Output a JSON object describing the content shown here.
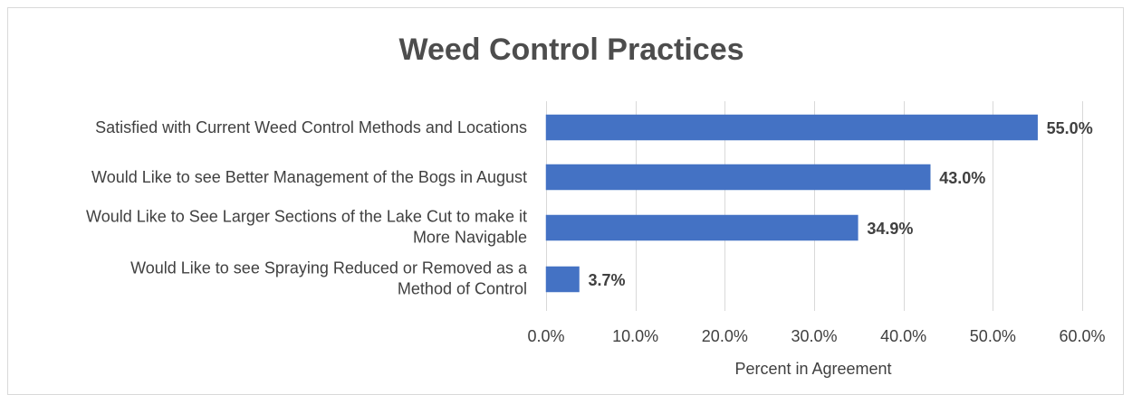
{
  "chart_data": {
    "type": "bar",
    "orientation": "horizontal",
    "title": "Weed Control Practices",
    "xlabel": "Percent in Agreement",
    "ylabel": "",
    "xlim": [
      0,
      60
    ],
    "x_ticks": [
      "0.0%",
      "10.0%",
      "20.0%",
      "30.0%",
      "40.0%",
      "50.0%",
      "60.0%"
    ],
    "grid": "vertical",
    "legend": "none",
    "bar_color": "#4472c4",
    "categories": [
      [
        "Satisfied with Current Weed Control Methods and Locations"
      ],
      [
        "Would Like to see Better Management of the Bogs in August"
      ],
      [
        "Would Like to See Larger Sections of the Lake Cut to make it",
        "More Navigable"
      ],
      [
        "Would Like to see Spraying Reduced or Removed as a",
        "Method of Control"
      ]
    ],
    "values": [
      55.0,
      43.0,
      34.9,
      3.7
    ],
    "data_labels": [
      "55.0%",
      "43.0%",
      "34.9%",
      "3.7%"
    ]
  }
}
